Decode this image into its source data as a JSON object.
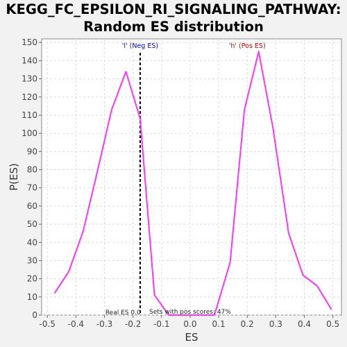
{
  "title_line1": "KEGG_FC_EPSILON_RI_SIGNALING_PATHWAY:",
  "title_line2": "Random ES distribution",
  "chart_data": {
    "type": "line",
    "title": "KEGG_FC_EPSILON_RI_SIGNALING_PATHWAY: Random ES distribution",
    "xlabel": "ES",
    "ylabel": "P(ES)",
    "xlim": [
      -0.52,
      0.53
    ],
    "ylim": [
      0,
      152
    ],
    "xticks": [
      -0.5,
      -0.4,
      -0.3,
      -0.2,
      -0.1,
      0.0,
      0.1,
      0.2,
      0.3,
      0.4,
      0.5
    ],
    "xtick_labels": [
      "-0.5",
      "-0.4",
      "-0.3",
      "-0.2",
      "-0.1",
      "0.0",
      "0.1",
      "0.2",
      "0.3",
      "0.4",
      "0.5"
    ],
    "yticks": [
      0,
      10,
      20,
      30,
      40,
      50,
      60,
      70,
      80,
      90,
      100,
      110,
      120,
      130,
      140,
      150
    ],
    "grid": true,
    "series": [
      {
        "color": "#ff33ff",
        "x": [
          -0.475,
          -0.425,
          -0.375,
          -0.325,
          -0.275,
          -0.225,
          -0.175,
          -0.125,
          -0.075,
          -0.025,
          0.025,
          0.085,
          0.14,
          0.19,
          0.24,
          0.29,
          0.345,
          0.395,
          0.445,
          0.495
        ],
        "y": [
          12,
          24,
          46,
          79,
          113,
          134,
          108,
          11,
          0,
          0,
          0,
          0,
          29,
          113,
          145,
          103,
          45,
          22,
          16,
          3
        ]
      }
    ],
    "marker_line": {
      "x": -0.175,
      "style": "dashed",
      "color": "#000000"
    },
    "annotations": [
      {
        "text": "'l' (Neg ES)",
        "x": -0.175,
        "color": "#0000cc"
      },
      {
        "text": "'h' (Pos ES)",
        "x": 0.2,
        "color": "#cc0000"
      },
      {
        "text": "Real ES 0.0",
        "x": -0.235
      },
      {
        "text": "Sets with pos scores: 47%",
        "x": 0.0
      }
    ]
  }
}
